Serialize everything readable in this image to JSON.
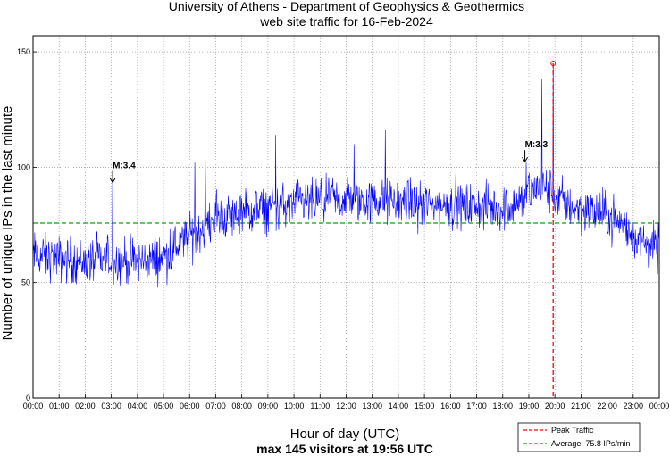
{
  "chart_data": {
    "type": "line",
    "title": [
      "University of Athens - Department of Geophysics & Geothermics",
      "web site traffic for 16-Feb-2024"
    ],
    "xlabel": "Hour of day (UTC)",
    "ylabel": "Number of unique IPs in the last minute",
    "subtitle": "max 145 visitors at 19:56 UTC",
    "x_tick_labels": [
      "00:00",
      "01:00",
      "02:00",
      "03:00",
      "04:00",
      "05:00",
      "06:00",
      "07:00",
      "08:00",
      "09:00",
      "10:00",
      "11:00",
      "12:00",
      "13:00",
      "14:00",
      "15:00",
      "16:00",
      "17:00",
      "18:00",
      "19:00",
      "20:00",
      "21:00",
      "22:00",
      "23:00",
      "00:00"
    ],
    "y_ticks": [
      0,
      50,
      100,
      150
    ],
    "xlim": [
      0,
      24
    ],
    "ylim": [
      0,
      157
    ],
    "grid": true,
    "series_color": "#0000ff",
    "hourly_mean_profile": [
      [
        0,
        62
      ],
      [
        1,
        60
      ],
      [
        2,
        59
      ],
      [
        3,
        60
      ],
      [
        4,
        59
      ],
      [
        5,
        61
      ],
      [
        5.5,
        66
      ],
      [
        6,
        69
      ],
      [
        6.5,
        74
      ],
      [
        7,
        78
      ],
      [
        8,
        80
      ],
      [
        9,
        82
      ],
      [
        10,
        84
      ],
      [
        11,
        85
      ],
      [
        12,
        86
      ],
      [
        13,
        85
      ],
      [
        14,
        85
      ],
      [
        15,
        84
      ],
      [
        16,
        83
      ],
      [
        17,
        83
      ],
      [
        18,
        82
      ],
      [
        18.7,
        85
      ],
      [
        19,
        89
      ],
      [
        19.5,
        92
      ],
      [
        20,
        88
      ],
      [
        20.5,
        84
      ],
      [
        21,
        82
      ],
      [
        22,
        79
      ],
      [
        22.5,
        76
      ],
      [
        23,
        70
      ],
      [
        24,
        64
      ]
    ],
    "noise_amplitude": 7,
    "spikes": [
      [
        3.05,
        94
      ],
      [
        6.2,
        102
      ],
      [
        6.6,
        102
      ],
      [
        9.3,
        114
      ],
      [
        12.3,
        110
      ],
      [
        13.5,
        116
      ],
      [
        18.9,
        102
      ],
      [
        19.5,
        138
      ],
      [
        19.933,
        145
      ]
    ],
    "annotations": [
      {
        "label": "M:3.4",
        "x": 3.05,
        "y": 93
      },
      {
        "label": "M:3.3",
        "x": 18.85,
        "y": 102
      }
    ],
    "peak": {
      "x": 19.933,
      "y": 145,
      "label": "Peak Traffic",
      "color": "#ff0000"
    },
    "average": {
      "y": 75.8,
      "label": "Average: 75.8 IPs/min",
      "color": "#00aa00"
    }
  }
}
